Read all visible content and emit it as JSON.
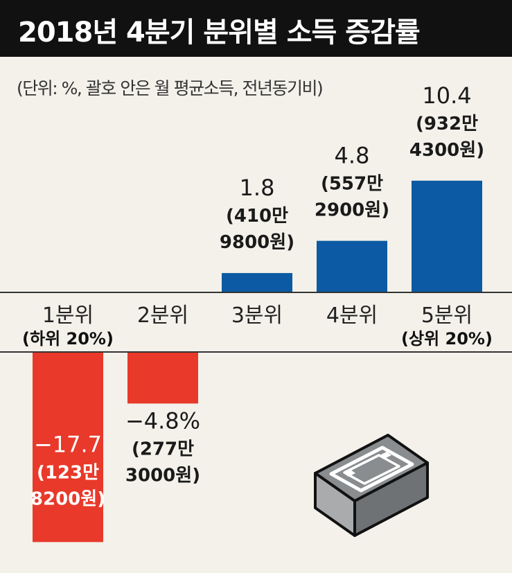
{
  "title": "2018년 4분기 분위별 소득 증감률",
  "unit_note": "(단위: %, 괄호 안은 월 평균소득, 전년동기비)",
  "colors": {
    "positive": "#0b5aa3",
    "negative": "#e8392a",
    "baseline": "#333333",
    "background": "#f3f1ea",
    "title_bg": "#111111"
  },
  "icon": "stack-of-cash-icon",
  "chart_data": {
    "type": "bar",
    "title": "2018년 4분기 분위별 소득 증감률",
    "categories": [
      "1분위",
      "2분위",
      "3분위",
      "4분위",
      "5분위"
    ],
    "category_notes": [
      "(하위 20%)",
      "",
      "",
      "",
      "(상위 20%)"
    ],
    "values": [
      -17.7,
      -4.8,
      1.8,
      4.8,
      10.4
    ],
    "value_labels": [
      "−17.7",
      "−4.8%",
      "1.8",
      "4.8",
      "10.4"
    ],
    "income_labels": [
      [
        "(123만",
        "8200원)"
      ],
      [
        "(277만",
        "3000원)"
      ],
      [
        "(410만",
        "9800원)"
      ],
      [
        "(557만",
        "2900원)"
      ],
      [
        "(932만",
        "4300원)"
      ]
    ],
    "unit": "%",
    "grid": false,
    "legend": "none"
  }
}
